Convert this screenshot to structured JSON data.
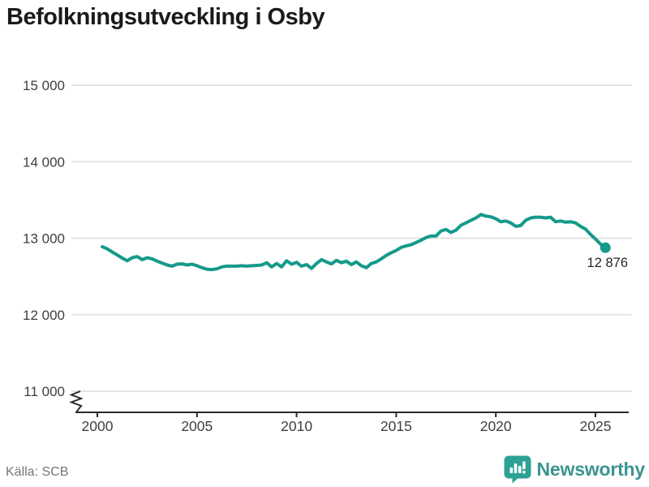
{
  "title": "Befolkningsutveckling i Osby",
  "source": {
    "label": "Källa: SCB"
  },
  "branding": {
    "name": "Newsworthy",
    "icon": "newsworthy-speech-bubble-chart-icon"
  },
  "colors": {
    "line": "#149a8a",
    "grid": "#e4e4e4",
    "axis": "#2b2b2b",
    "title": "#1a1a1a",
    "tick_label": "#3f3f3f",
    "data_label": "#262626",
    "source_text": "#75757d",
    "brand_text": "#3a948e",
    "brand_icon_bg": "#2ba293"
  },
  "chart_data": {
    "type": "line",
    "title": "Befolkningsutveckling i Osby",
    "xlabel": "",
    "ylabel": "",
    "grid": "horizontal",
    "legend": "none",
    "axis_break": true,
    "ylim": [
      11000,
      15000
    ],
    "xlim": [
      2000,
      2026.2
    ],
    "y_ticks": [
      15000,
      14000,
      13000,
      12000,
      11000
    ],
    "y_tick_labels": [
      "15 000",
      "14 000",
      "13 000",
      "12 000",
      "11 000"
    ],
    "x_ticks": [
      2000,
      2005,
      2010,
      2015,
      2020,
      2025
    ],
    "x_tick_labels": [
      "2000",
      "2005",
      "2010",
      "2015",
      "2020",
      "2025"
    ],
    "end_label": "12 876",
    "end_value": 12876,
    "x_start": 2000.25,
    "x_step": 0.25,
    "series": [
      {
        "name": "Befolkning i Osby",
        "values": [
          12890,
          12860,
          12820,
          12780,
          12740,
          12705,
          12745,
          12760,
          12720,
          12745,
          12730,
          12700,
          12675,
          12650,
          12635,
          12660,
          12665,
          12650,
          12660,
          12640,
          12615,
          12595,
          12590,
          12600,
          12625,
          12635,
          12635,
          12635,
          12640,
          12635,
          12640,
          12645,
          12650,
          12680,
          12625,
          12670,
          12625,
          12705,
          12660,
          12685,
          12635,
          12655,
          12605,
          12670,
          12720,
          12690,
          12665,
          12710,
          12680,
          12700,
          12655,
          12690,
          12640,
          12615,
          12670,
          12690,
          12730,
          12775,
          12810,
          12840,
          12880,
          12900,
          12915,
          12945,
          12975,
          13010,
          13030,
          13030,
          13095,
          13115,
          13075,
          13105,
          13170,
          13200,
          13235,
          13265,
          13310,
          13290,
          13280,
          13255,
          13215,
          13225,
          13200,
          13155,
          13165,
          13235,
          13265,
          13275,
          13275,
          13265,
          13275,
          13215,
          13225,
          13210,
          13215,
          13200,
          13155,
          13120,
          13050,
          12990,
          12925,
          12876
        ]
      }
    ]
  }
}
